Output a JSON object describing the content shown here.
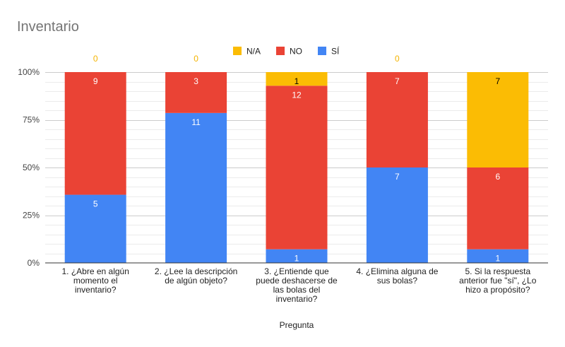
{
  "chart_data": {
    "type": "bar",
    "stacked": "percent",
    "title": "Inventario",
    "xlabel": "Pregunta",
    "ylabel": "",
    "ylim": [
      0,
      100
    ],
    "yticks": [
      "0%",
      "25%",
      "50%",
      "75%",
      "100%"
    ],
    "grid": true,
    "legend_position": "top",
    "categories": [
      [
        "1. ¿Abre en algún",
        "momento el",
        "inventario?"
      ],
      [
        "2. ¿Lee la descripción",
        "de algún objeto?"
      ],
      [
        "3. ¿Entiende que",
        "puede deshacerse de",
        "las bolas del",
        "inventario?"
      ],
      [
        "4. ¿Elimina alguna de",
        "sus bolas?"
      ],
      [
        "5. Si la respuesta",
        "anterior fue \"sí\", ¿Lo",
        "hizo a propósito?"
      ]
    ],
    "series": [
      {
        "name": "SÍ",
        "color": "#4285f4",
        "label_color": "#ffffff",
        "values": [
          5,
          11,
          1,
          7,
          1
        ]
      },
      {
        "name": "NO",
        "color": "#ea4335",
        "label_color": "#ffffff",
        "values": [
          9,
          3,
          12,
          7,
          6
        ]
      },
      {
        "name": "N/A",
        "color": "#fbbc04",
        "label_color": "#000000",
        "zero_label_color": "#f4b400",
        "values": [
          0,
          0,
          1,
          0,
          7
        ]
      }
    ],
    "legend_order": [
      "N/A",
      "NO",
      "SÍ"
    ]
  }
}
